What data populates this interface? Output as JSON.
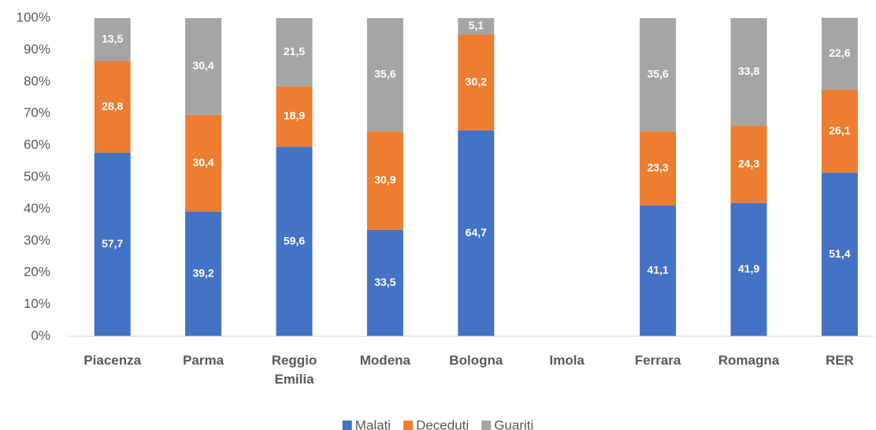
{
  "chart_data": {
    "type": "stacked_bar",
    "categories": [
      "Piacenza",
      "Parma",
      "Reggio Emilia",
      "Modena",
      "Bologna",
      "Imola",
      "Ferrara",
      "Romagna",
      "RER"
    ],
    "series": [
      {
        "name": "Malati",
        "color": "#4472c4",
        "values": [
          57.7,
          39.2,
          59.6,
          33.5,
          64.7,
          null,
          41.1,
          41.9,
          51.4
        ],
        "value_labels": [
          "57,7",
          "39,2",
          "59,6",
          "33,5",
          "64,7",
          null,
          "41,1",
          "41,9",
          "51,4"
        ]
      },
      {
        "name": "Deceduti",
        "color": "#ed7d31",
        "values": [
          28.8,
          30.4,
          18.9,
          30.9,
          30.2,
          null,
          23.3,
          24.3,
          26.1
        ],
        "value_labels": [
          "28,8",
          "30,4",
          "18,9",
          "30,9",
          "30,2",
          null,
          "23,3",
          "24,3",
          "26,1"
        ]
      },
      {
        "name": "Guariti",
        "color": "#a5a5a5",
        "values": [
          13.5,
          30.4,
          21.5,
          35.6,
          5.1,
          null,
          35.6,
          33.8,
          22.6
        ],
        "value_labels": [
          "13,5",
          "30,4",
          "21,5",
          "35,6",
          "5,1",
          null,
          "35,6",
          "33,8",
          "22,6"
        ]
      }
    ],
    "ylim": [
      0,
      100
    ],
    "yticks": [
      {
        "value": 0,
        "label": "0%"
      },
      {
        "value": 10,
        "label": "10%"
      },
      {
        "value": 20,
        "label": "20%"
      },
      {
        "value": 30,
        "label": "30%"
      },
      {
        "value": 40,
        "label": "40%"
      },
      {
        "value": 50,
        "label": "50%"
      },
      {
        "value": 60,
        "label": "60%"
      },
      {
        "value": 70,
        "label": "70%"
      },
      {
        "value": 80,
        "label": "80%"
      },
      {
        "value": 90,
        "label": "90%"
      },
      {
        "value": 100,
        "label": "100%"
      }
    ],
    "legend": "bottom"
  }
}
